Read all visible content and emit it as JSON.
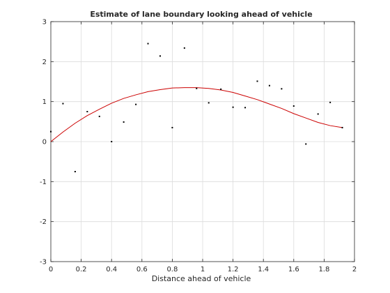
{
  "chart_data": {
    "type": "scatter",
    "title": "Estimate of lane boundary looking ahead of vehicle",
    "xlabel": "Distance ahead of vehicle",
    "ylabel": "",
    "xlim": [
      0,
      2
    ],
    "ylim": [
      -3,
      3
    ],
    "xticks": [
      "0",
      "0.2",
      "0.4",
      "0.6",
      "0.8",
      "1",
      "1.2",
      "1.4",
      "1.6",
      "1.8",
      "2"
    ],
    "yticks": [
      "-3",
      "-2",
      "-1",
      "0",
      "1",
      "2",
      "3"
    ],
    "grid": true,
    "series": [
      {
        "kind": "points",
        "color": "#000000",
        "x": [
          0.0,
          0.08,
          0.16,
          0.24,
          0.32,
          0.4,
          0.48,
          0.56,
          0.64,
          0.72,
          0.8,
          0.88,
          0.96,
          1.04,
          1.12,
          1.2,
          1.28,
          1.36,
          1.44,
          1.52,
          1.6,
          1.68,
          1.76,
          1.84,
          1.92
        ],
        "y": [
          0.25,
          0.95,
          -0.75,
          0.75,
          0.63,
          0.0,
          0.49,
          0.93,
          2.45,
          2.14,
          0.35,
          2.34,
          1.33,
          0.97,
          1.31,
          0.86,
          0.85,
          1.51,
          1.4,
          1.32,
          0.89,
          -0.06,
          0.69,
          0.98,
          0.35
        ]
      },
      {
        "kind": "fitted-curve",
        "color": "#cc0000",
        "x": [
          0.0,
          0.08,
          0.16,
          0.24,
          0.32,
          0.4,
          0.48,
          0.56,
          0.64,
          0.72,
          0.8,
          0.88,
          0.96,
          1.04,
          1.12,
          1.2,
          1.28,
          1.36,
          1.44,
          1.52,
          1.6,
          1.68,
          1.76,
          1.84,
          1.92
        ],
        "y": [
          0.0,
          0.24,
          0.46,
          0.65,
          0.81,
          0.96,
          1.08,
          1.17,
          1.25,
          1.3,
          1.34,
          1.35,
          1.35,
          1.33,
          1.29,
          1.23,
          1.14,
          1.05,
          0.94,
          0.83,
          0.7,
          0.59,
          0.48,
          0.4,
          0.35
        ]
      }
    ]
  }
}
